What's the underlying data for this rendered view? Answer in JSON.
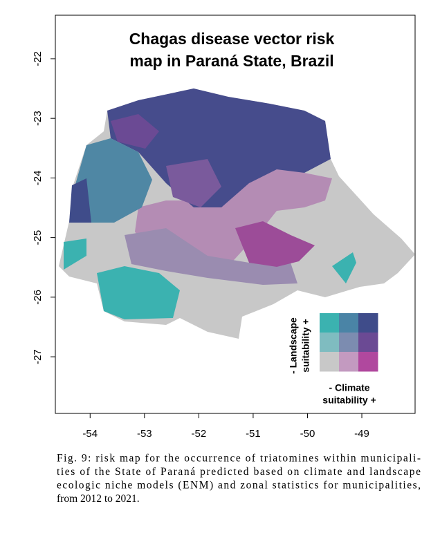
{
  "title_lines": [
    "Chagas disease vector risk",
    "map in Paraná State, Brazil"
  ],
  "axes": {
    "xlim": [
      -54.64,
      -48.02
    ],
    "xticks": [
      -54,
      -53,
      -52,
      -51,
      -50,
      -49
    ],
    "ylim": [
      -27.95,
      -21.27
    ],
    "yticks": [
      -22,
      -23,
      -24,
      -25,
      -26,
      -27
    ]
  },
  "legend": {
    "y_label_lines": [
      "- Landscape",
      "suitability +"
    ],
    "x_label_lines": [
      "- Climate",
      "suitability +"
    ],
    "colors": [
      [
        "#3bb2b0",
        "#4a84a6",
        "#3f4c8a"
      ],
      [
        "#7fbcc0",
        "#7c8cb0",
        "#6b4a94"
      ],
      [
        "#c8c8c8",
        "#c39ac0",
        "#b0489e"
      ]
    ]
  },
  "caption_lines": [
    "Fig. 9: risk map for the occurrence of triatomines within municipali-",
    "ties of the State of Paraná predicted based on climate and landscape",
    "ecologic niche models (ENM) and zonal statistics for municipalities,",
    "from 2012 to 2021."
  ]
}
